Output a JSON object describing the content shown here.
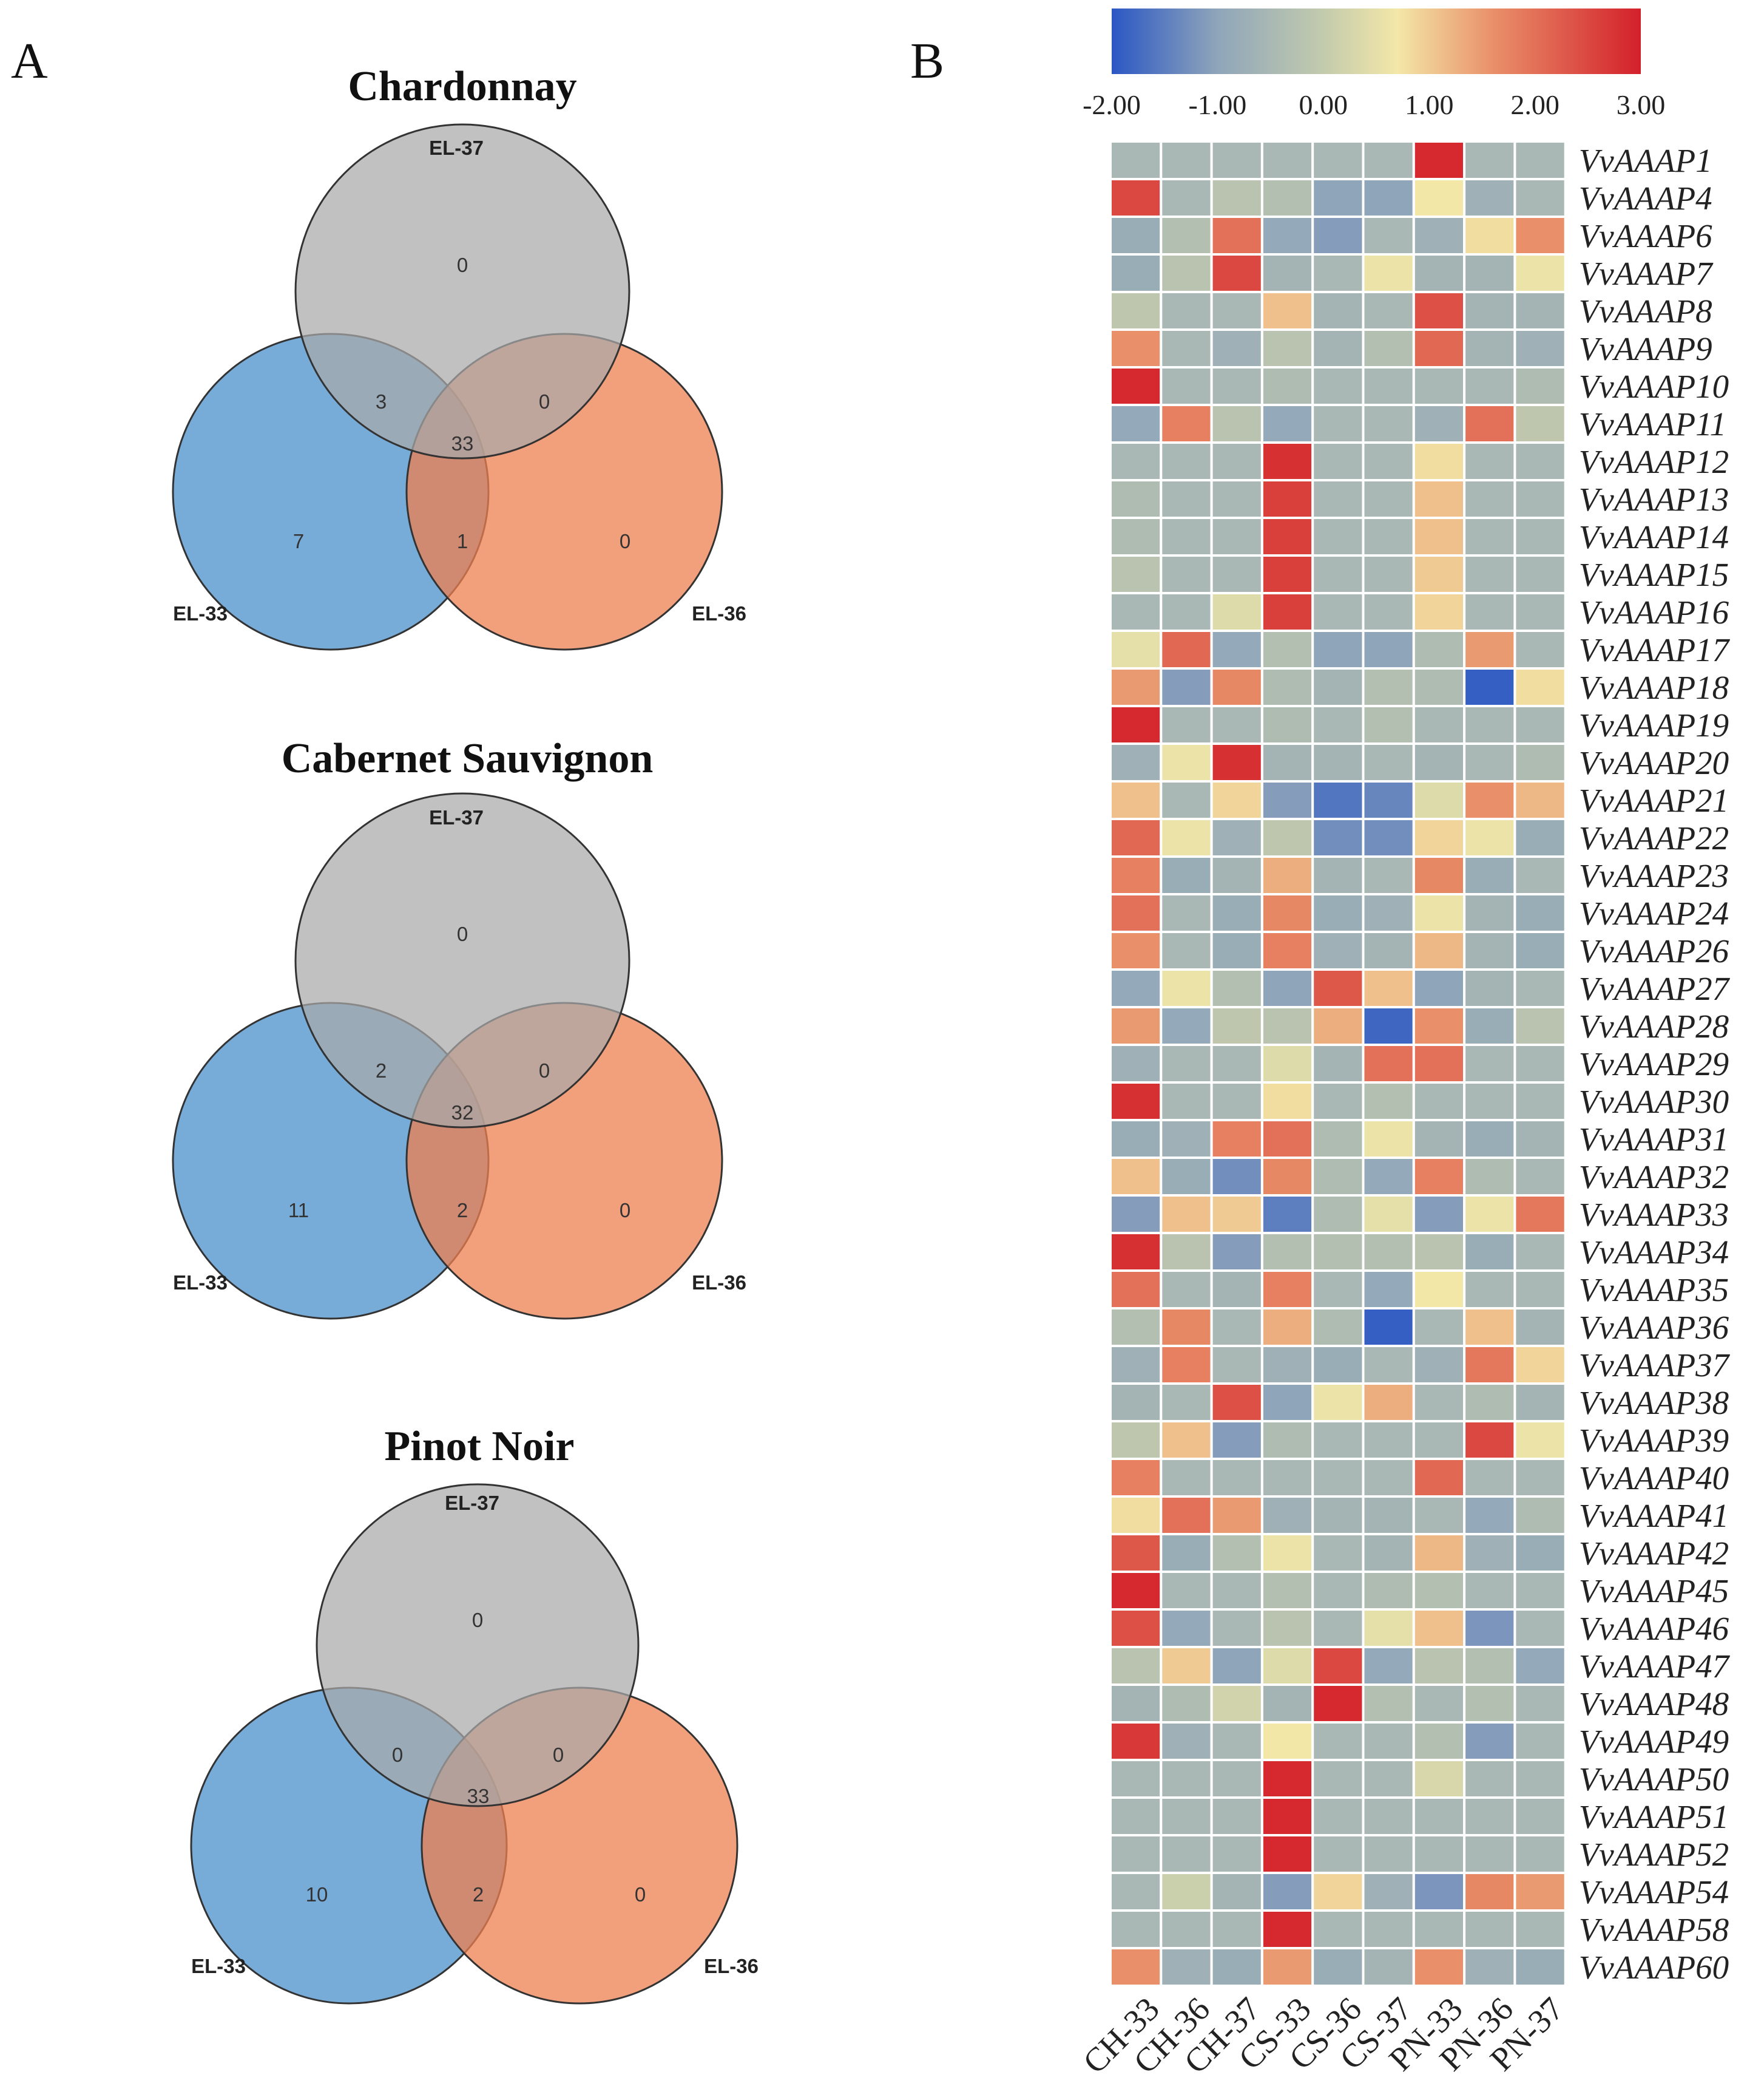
{
  "panels": {
    "a_label": "A",
    "b_label": "B"
  },
  "colors": {
    "el33": "#4a90cc",
    "el36": "#ee7f4f",
    "el37": "#a9a9a9",
    "outline": "#333333"
  },
  "chart_data": [
    {
      "type": "venn",
      "title": "Chardonnay",
      "sets": [
        "EL-37",
        "EL-33",
        "EL-36"
      ],
      "regions": {
        "only_el37": 0,
        "el33_el37": 3,
        "el37_el36": 0,
        "all_three": 33,
        "only_el33": 7,
        "el33_el36": 1,
        "only_el36": 0
      }
    },
    {
      "type": "venn",
      "title": "Cabernet Sauvignon",
      "sets": [
        "EL-37",
        "EL-33",
        "EL-36"
      ],
      "regions": {
        "only_el37": 0,
        "el33_el37": 2,
        "el37_el36": 0,
        "all_three": 32,
        "only_el33": 11,
        "el33_el36": 2,
        "only_el36": 0
      }
    },
    {
      "type": "venn",
      "title": "Pinot Noir",
      "sets": [
        "EL-37",
        "EL-33",
        "EL-36"
      ],
      "regions": {
        "only_el37": 0,
        "el33_el37": 0,
        "el37_el36": 0,
        "all_three": 33,
        "only_el33": 10,
        "el33_el36": 2,
        "only_el36": 0
      }
    },
    {
      "type": "heatmap",
      "color_scale": {
        "min": -2,
        "max": 3,
        "ticks": [
          "-2.00",
          "-1.00",
          "0.00",
          "1.00",
          "2.00",
          "3.00"
        ],
        "stops": [
          {
            "value": -2.0,
            "color": "#2b57c4"
          },
          {
            "value": -1.0,
            "color": "#8fa5ba"
          },
          {
            "value": 0.0,
            "color": "#c3cbad"
          },
          {
            "value": 0.7,
            "color": "#f3e7a8"
          },
          {
            "value": 1.6,
            "color": "#e9906a"
          },
          {
            "value": 3.0,
            "color": "#d3202a"
          }
        ]
      },
      "columns": [
        "CH-33",
        "CH-36",
        "CH-37",
        "CS-33",
        "CS-36",
        "CS-37",
        "PN-33",
        "PN-36",
        "PN-37"
      ],
      "rows": [
        "VvAAAP1",
        "VvAAAP4",
        "VvAAAP6",
        "VvAAAP7",
        "VvAAAP8",
        "VvAAAP9",
        "VvAAAP10",
        "VvAAAP11",
        "VvAAAP12",
        "VvAAAP13",
        "VvAAAP14",
        "VvAAAP15",
        "VvAAAP16",
        "VvAAAP17",
        "VvAAAP18",
        "VvAAAP19",
        "VvAAAP20",
        "VvAAAP21",
        "VvAAAP22",
        "VvAAAP23",
        "VvAAAP24",
        "VvAAAP26",
        "VvAAAP27",
        "VvAAAP28",
        "VvAAAP29",
        "VvAAAP30",
        "VvAAAP31",
        "VvAAAP32",
        "VvAAAP33",
        "VvAAAP34",
        "VvAAAP35",
        "VvAAAP36",
        "VvAAAP37",
        "VvAAAP38",
        "VvAAAP39",
        "VvAAAP40",
        "VvAAAP41",
        "VvAAAP42",
        "VvAAAP45",
        "VvAAAP46",
        "VvAAAP47",
        "VvAAAP48",
        "VvAAAP49",
        "VvAAAP50",
        "VvAAAP51",
        "VvAAAP52",
        "VvAAAP54",
        "VvAAAP58",
        "VvAAAP60"
      ],
      "values": [
        [
          -0.5,
          -0.5,
          -0.5,
          -0.5,
          -0.5,
          -0.5,
          2.9,
          -0.5,
          -0.5
        ],
        [
          2.5,
          -0.5,
          -0.2,
          -0.3,
          -1.0,
          -1.0,
          0.7,
          -0.7,
          -0.5
        ],
        [
          -0.8,
          -0.3,
          2.0,
          -0.9,
          -1.1,
          -0.5,
          -0.7,
          0.8,
          1.6
        ],
        [
          -0.8,
          -0.2,
          2.5,
          -0.6,
          -0.5,
          0.6,
          -0.6,
          -0.6,
          0.6
        ],
        [
          -0.1,
          -0.5,
          -0.5,
          1.1,
          -0.6,
          -0.5,
          2.4,
          -0.6,
          -0.6
        ],
        [
          1.6,
          -0.5,
          -0.7,
          -0.2,
          -0.6,
          -0.3,
          2.1,
          -0.6,
          -0.7
        ],
        [
          2.9,
          -0.5,
          -0.5,
          -0.4,
          -0.5,
          -0.5,
          -0.5,
          -0.5,
          -0.4
        ],
        [
          -0.9,
          1.8,
          -0.2,
          -0.9,
          -0.5,
          -0.5,
          -0.7,
          2.0,
          -0.1
        ],
        [
          -0.5,
          -0.5,
          -0.5,
          2.8,
          -0.5,
          -0.5,
          0.8,
          -0.5,
          -0.5
        ],
        [
          -0.4,
          -0.5,
          -0.5,
          2.6,
          -0.5,
          -0.5,
          1.1,
          -0.5,
          -0.5
        ],
        [
          -0.4,
          -0.5,
          -0.5,
          2.6,
          -0.5,
          -0.5,
          1.1,
          -0.5,
          -0.5
        ],
        [
          -0.2,
          -0.5,
          -0.5,
          2.6,
          -0.5,
          -0.5,
          1.0,
          -0.5,
          -0.5
        ],
        [
          -0.5,
          -0.5,
          0.4,
          2.6,
          -0.5,
          -0.5,
          0.9,
          -0.5,
          -0.5
        ],
        [
          0.5,
          2.1,
          -0.9,
          -0.3,
          -1.0,
          -1.0,
          -0.4,
          1.5,
          -0.5
        ],
        [
          1.5,
          -1.1,
          1.7,
          -0.4,
          -0.6,
          -0.3,
          -0.4,
          -1.9,
          0.8
        ],
        [
          2.9,
          -0.5,
          -0.5,
          -0.4,
          -0.5,
          -0.3,
          -0.5,
          -0.5,
          -0.5
        ],
        [
          -0.7,
          0.6,
          2.8,
          -0.6,
          -0.6,
          -0.5,
          -0.6,
          -0.5,
          -0.4
        ],
        [
          1.1,
          -0.5,
          0.9,
          -1.1,
          -1.6,
          -1.4,
          0.4,
          1.6,
          1.2
        ],
        [
          2.1,
          0.6,
          -0.7,
          -0.1,
          -1.3,
          -1.3,
          0.9,
          0.6,
          -0.8
        ],
        [
          1.8,
          -0.8,
          -0.6,
          1.3,
          -0.6,
          -0.5,
          1.7,
          -0.8,
          -0.5
        ],
        [
          2.0,
          -0.5,
          -0.8,
          1.7,
          -0.8,
          -0.7,
          0.6,
          -0.6,
          -0.8
        ],
        [
          1.6,
          -0.5,
          -0.8,
          1.8,
          -0.7,
          -0.6,
          1.2,
          -0.6,
          -0.8
        ],
        [
          -0.9,
          0.6,
          -0.3,
          -1.0,
          2.3,
          1.1,
          -1.0,
          -0.6,
          -0.5
        ],
        [
          1.5,
          -0.9,
          -0.1,
          -0.2,
          1.3,
          -1.8,
          1.6,
          -0.8,
          -0.2
        ],
        [
          -0.7,
          -0.5,
          -0.5,
          0.4,
          -0.6,
          2.0,
          2.0,
          -0.5,
          -0.5
        ],
        [
          2.8,
          -0.5,
          -0.5,
          0.8,
          -0.5,
          -0.3,
          -0.5,
          -0.5,
          -0.5
        ],
        [
          -0.8,
          -0.7,
          1.8,
          2.0,
          -0.4,
          0.6,
          -0.6,
          -0.8,
          -0.6
        ],
        [
          1.1,
          -0.8,
          -1.3,
          1.7,
          -0.4,
          -0.9,
          1.8,
          -0.4,
          -0.5
        ],
        [
          -1.1,
          1.1,
          1.0,
          -1.5,
          -0.4,
          0.5,
          -1.1,
          0.6,
          1.9
        ],
        [
          2.8,
          -0.2,
          -1.1,
          -0.3,
          -0.3,
          -0.3,
          -0.2,
          -0.8,
          -0.5
        ],
        [
          2.0,
          -0.5,
          -0.6,
          1.8,
          -0.5,
          -0.9,
          0.7,
          -0.5,
          -0.5
        ],
        [
          -0.3,
          1.7,
          -0.5,
          1.3,
          -0.4,
          -1.9,
          -0.5,
          1.1,
          -0.6
        ],
        [
          -0.7,
          1.8,
          -0.5,
          -0.7,
          -0.8,
          -0.5,
          -0.7,
          1.9,
          0.9
        ],
        [
          -0.6,
          -0.5,
          2.4,
          -1.0,
          0.6,
          1.3,
          -0.5,
          -0.4,
          -0.6
        ],
        [
          -0.1,
          1.1,
          -1.1,
          -0.4,
          -0.5,
          -0.5,
          -0.5,
          2.5,
          0.6
        ],
        [
          1.8,
          -0.5,
          -0.5,
          -0.5,
          -0.5,
          -0.5,
          2.1,
          -0.5,
          -0.5
        ],
        [
          0.8,
          2.0,
          1.5,
          -0.7,
          -0.6,
          -0.6,
          -0.5,
          -0.9,
          -0.4
        ],
        [
          2.3,
          -0.8,
          -0.3,
          0.6,
          -0.5,
          -0.6,
          1.2,
          -0.7,
          -0.8
        ],
        [
          2.9,
          -0.5,
          -0.5,
          -0.3,
          -0.5,
          -0.4,
          -0.3,
          -0.5,
          -0.5
        ],
        [
          2.4,
          -0.9,
          -0.5,
          -0.2,
          -0.5,
          0.5,
          1.1,
          -1.2,
          -0.5
        ],
        [
          -0.2,
          1.0,
          -1.0,
          0.4,
          2.5,
          -0.9,
          -0.2,
          -0.3,
          -0.9
        ],
        [
          -0.6,
          -0.4,
          0.2,
          -0.6,
          2.9,
          -0.3,
          -0.5,
          -0.3,
          -0.5
        ],
        [
          2.7,
          -0.7,
          -0.5,
          0.7,
          -0.5,
          -0.5,
          -0.3,
          -1.1,
          -0.5
        ],
        [
          -0.5,
          -0.5,
          -0.5,
          2.9,
          -0.5,
          -0.5,
          0.3,
          -0.5,
          -0.5
        ],
        [
          -0.5,
          -0.5,
          -0.5,
          2.9,
          -0.5,
          -0.5,
          -0.5,
          -0.5,
          -0.5
        ],
        [
          -0.5,
          -0.5,
          -0.5,
          2.9,
          -0.5,
          -0.5,
          -0.5,
          -0.5,
          -0.5
        ],
        [
          -0.5,
          0.1,
          -0.6,
          -1.1,
          0.9,
          -0.7,
          -1.2,
          1.7,
          1.5
        ],
        [
          -0.5,
          -0.5,
          -0.5,
          2.9,
          -0.5,
          -0.5,
          -0.5,
          -0.5,
          -0.5
        ],
        [
          1.6,
          -0.7,
          -0.8,
          1.5,
          -0.8,
          -0.6,
          1.6,
          -0.7,
          -0.8
        ]
      ]
    }
  ]
}
